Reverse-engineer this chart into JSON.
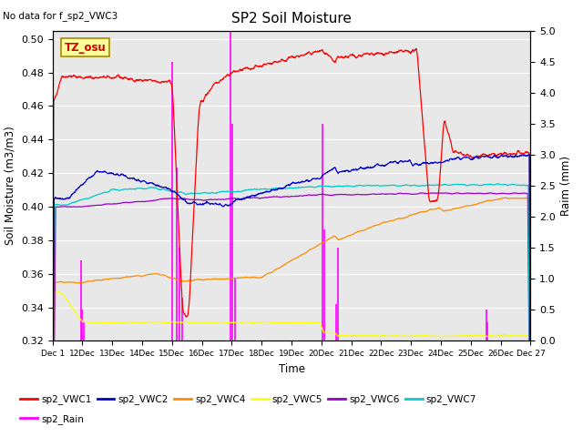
{
  "title": "SP2 Soil Moisture",
  "top_left_text": "No data for f_sp2_VWC3",
  "ylabel_left": "Soil Moisture (m3/m3)",
  "ylabel_right": "Raim (mm)",
  "xlabel": "Time",
  "annotation_text": "TZ_osu",
  "ylim_left": [
    0.32,
    0.505
  ],
  "ylim_right": [
    0.0,
    5.0
  ],
  "yticks_left": [
    0.32,
    0.34,
    0.36,
    0.38,
    0.4,
    0.42,
    0.44,
    0.46,
    0.48,
    0.5
  ],
  "yticks_right": [
    0.0,
    0.5,
    1.0,
    1.5,
    2.0,
    2.5,
    3.0,
    3.5,
    4.0,
    4.5,
    5.0
  ],
  "xtick_labels": [
    "Dec 1",
    "Dec 13",
    "Dec 14",
    "Dec 15",
    "Dec 16",
    "Dec 17",
    "Dec 18",
    "Dec 19",
    "Dec 20",
    "Dec 21",
    "Dec 22",
    "Dec 23",
    "Dec 24",
    "Dec 25",
    "Dec 26",
    "Dec 27"
  ],
  "colors": {
    "VWC1": "#ff0000",
    "VWC2": "#0000cc",
    "VWC4": "#ff8c00",
    "VWC5": "#ffff00",
    "VWC6": "#9900cc",
    "VWC7": "#00cccc",
    "Rain": "#ff00ff"
  },
  "background_color": "#ffffff",
  "plot_bg_color": "#e8e8e8",
  "annotation_bg": "#ffff99",
  "annotation_border": "#ff0000"
}
